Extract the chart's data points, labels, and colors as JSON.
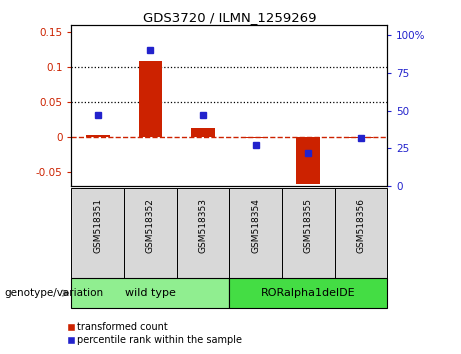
{
  "title": "GDS3720 / ILMN_1259269",
  "samples": [
    "GSM518351",
    "GSM518352",
    "GSM518353",
    "GSM518354",
    "GSM518355",
    "GSM518356"
  ],
  "transformed_count": [
    0.002,
    0.108,
    0.012,
    -0.002,
    -0.068,
    -0.002
  ],
  "percentile_rank": [
    47,
    90,
    47,
    27,
    22,
    32
  ],
  "ylim_left": [
    -0.07,
    0.16
  ],
  "ylim_right": [
    0,
    107
  ],
  "yticks_left": [
    -0.05,
    0.0,
    0.05,
    0.1,
    0.15
  ],
  "yticks_right": [
    0,
    25,
    50,
    75,
    100
  ],
  "hlines_dotted": [
    0.05,
    0.1
  ],
  "zero_line_val": 0.0,
  "group1_indices": [
    0,
    1,
    2
  ],
  "group2_indices": [
    3,
    4,
    5
  ],
  "group1_label": "wild type",
  "group2_label": "RORalpha1delDE",
  "group1_color": "#90EE90",
  "group2_color": "#44DD44",
  "bar_color": "#CC2200",
  "dot_color": "#2222CC",
  "zero_line_color": "#CC2200",
  "tick_bg_color": "#D8D8D8",
  "legend_red_label": "transformed count",
  "legend_blue_label": "percentile rank within the sample",
  "genotype_label": "genotype/variation"
}
